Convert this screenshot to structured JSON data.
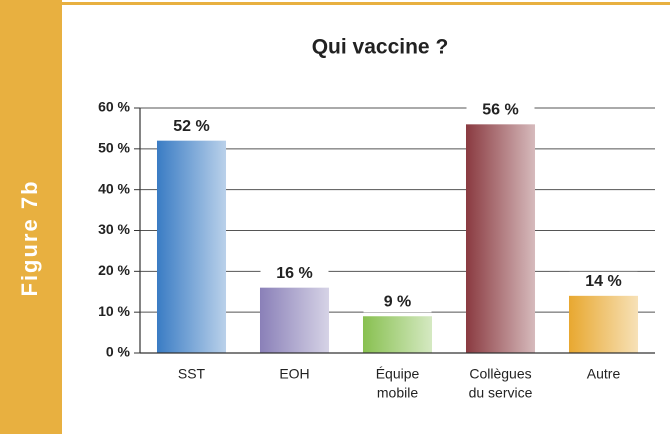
{
  "chart_data": {
    "type": "bar",
    "figure_label": "Figure 7b",
    "title": "Qui vaccine ?",
    "categories": [
      [
        "SST"
      ],
      [
        "EOH"
      ],
      [
        "Équipe",
        "mobile"
      ],
      [
        "Collègues",
        "du service"
      ],
      [
        "Autre"
      ]
    ],
    "values": [
      52,
      16,
      9,
      56,
      14
    ],
    "value_labels": [
      "52 %",
      "16 %",
      "9 %",
      "56 %",
      "14 %"
    ],
    "colors": [
      "#3a7cc4",
      "#8a80b8",
      "#88c050",
      "#8a3a40",
      "#e8a830"
    ],
    "ylim": [
      0,
      60
    ],
    "yticks": [
      {
        "value": 0,
        "label": "0 %"
      },
      {
        "value": 10,
        "label": "10 %"
      },
      {
        "value": 20,
        "label": "20 %"
      },
      {
        "value": 30,
        "label": "30 %"
      },
      {
        "value": 40,
        "label": "40 %"
      },
      {
        "value": 50,
        "label": "50 %"
      },
      {
        "value": 60,
        "label": "60 %"
      }
    ],
    "grid": true
  }
}
